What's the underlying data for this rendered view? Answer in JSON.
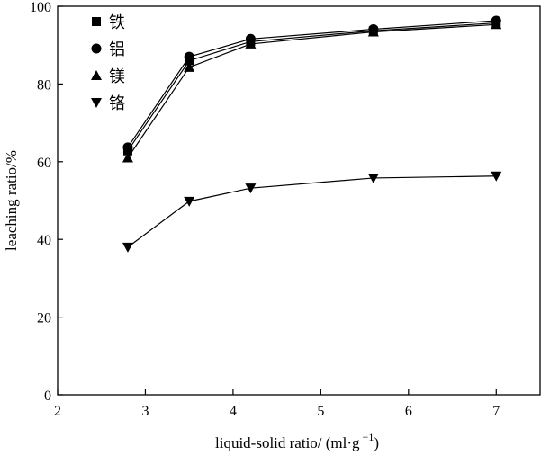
{
  "chart_data": {
    "type": "line",
    "title": "",
    "xlabel": "liquid-solid ratio/ (ml·g",
    "xlabel_sup": "−1",
    "xlabel_suffix": ")",
    "ylabel": "leaching ratio/%",
    "xlim": [
      2,
      7.5
    ],
    "ylim": [
      0,
      100
    ],
    "xticks": [
      2,
      3,
      4,
      5,
      6,
      7
    ],
    "yticks": [
      0,
      20,
      40,
      60,
      80,
      100
    ],
    "grid": false,
    "legend_position": "top-left",
    "x": [
      2.8,
      3.5,
      4.2,
      5.6,
      7.0
    ],
    "series": [
      {
        "name": "铁",
        "marker": "square",
        "values": [
          62.8,
          86.0,
          90.9,
          93.7,
          95.7
        ]
      },
      {
        "name": "铝",
        "marker": "circle",
        "values": [
          63.7,
          87.0,
          91.6,
          94.1,
          96.3
        ]
      },
      {
        "name": "镁",
        "marker": "triangle-up",
        "values": [
          61.0,
          84.3,
          90.3,
          93.4,
          95.3
        ]
      },
      {
        "name": "铬",
        "marker": "triangle-down",
        "values": [
          38.0,
          49.8,
          53.2,
          55.8,
          56.3
        ]
      }
    ]
  }
}
